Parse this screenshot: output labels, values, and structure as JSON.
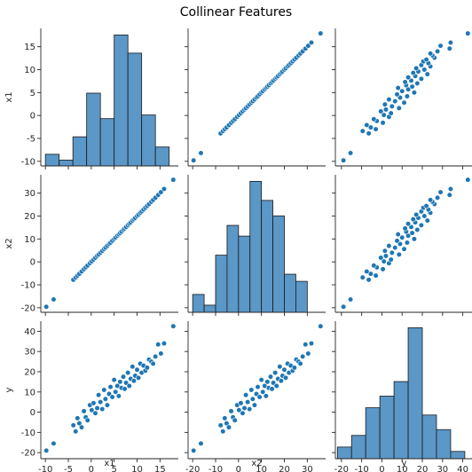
{
  "chart_data": {
    "type": "pairplot",
    "title": "Collinear Features",
    "variables": [
      "x1",
      "x2",
      "y"
    ],
    "colors": {
      "marker": "#1f77b4",
      "hist_fill": "#5b97c7",
      "hist_edge": "#1a1a1a",
      "axis": "#262626"
    },
    "axes": {
      "x1": {
        "range": [
          -11,
          19
        ],
        "ticks": [
          -10,
          -5,
          0,
          5,
          10,
          15
        ]
      },
      "x2": {
        "range": [
          -22,
          38
        ],
        "ticks": [
          -20,
          -10,
          0,
          10,
          20,
          30
        ]
      },
      "y": {
        "range": [
          -23,
          45
        ],
        "ticks": [
          -20,
          -10,
          0,
          10,
          20,
          30,
          40
        ]
      }
    },
    "histograms": {
      "x1": {
        "edges": [
          -10,
          -7,
          -4,
          -1,
          2,
          5,
          8,
          11,
          14,
          17,
          20
        ],
        "counts": [
          1.6,
          0.8,
          4,
          10,
          6.5,
          18,
          15.5,
          7,
          2.6,
          0
        ]
      },
      "x2": {
        "edges": [
          -20,
          -15,
          -10,
          -5,
          0,
          5,
          10,
          15,
          20,
          25,
          30,
          35,
          40
        ],
        "counts": [
          1.5,
          0.6,
          4.8,
          7.3,
          6.4,
          11,
          9.4,
          8.1,
          3.2,
          2.6,
          0,
          0
        ]
      },
      "y": {
        "edges": [
          -22,
          -15,
          -8,
          -1,
          6,
          13,
          20,
          27,
          34,
          41,
          48
        ],
        "counts": [
          1.6,
          3.2,
          7,
          8.6,
          10.6,
          18,
          6,
          4,
          1,
          0
        ]
      }
    },
    "series": [
      {
        "values": {
          "x1": [
            -9.8,
            -8.2,
            -3.9,
            -3.4,
            -3.0,
            -2.6,
            -2.1,
            -1.6,
            -1.2,
            -0.8,
            -0.3,
            0.1,
            0.5,
            0.9,
            1.3,
            1.6,
            2.0,
            2.4,
            2.8,
            3.1,
            3.5,
            3.9,
            4.2,
            4.6,
            5.0,
            5.3,
            5.7,
            6.0,
            6.3,
            6.6,
            7.0,
            7.3,
            7.6,
            8.0,
            8.3,
            8.6,
            9.0,
            9.3,
            9.6,
            10.0,
            10.3,
            10.7,
            11.0,
            11.4,
            11.8,
            12.2,
            12.6,
            13.1,
            13.5,
            14.0,
            14.6,
            15.2,
            15.9,
            17.9
          ],
          "x2": [
            -19.6,
            -16.4,
            -7.8,
            -6.8,
            -6.0,
            -5.2,
            -4.2,
            -3.2,
            -2.4,
            -1.6,
            -0.6,
            0.2,
            1.0,
            1.8,
            2.6,
            3.2,
            4.0,
            4.8,
            5.6,
            6.2,
            7.0,
            7.8,
            8.4,
            9.2,
            10.0,
            10.6,
            11.4,
            12.0,
            12.6,
            13.2,
            14.0,
            14.6,
            15.2,
            16.0,
            16.6,
            17.2,
            18.0,
            18.6,
            19.2,
            20.0,
            20.6,
            21.4,
            22.0,
            22.8,
            23.6,
            24.4,
            25.2,
            26.2,
            27.0,
            28.0,
            29.2,
            30.4,
            31.8,
            35.8
          ],
          "y": [
            -19.0,
            -15.5,
            -6.5,
            -9.5,
            -3.0,
            -5.5,
            -7.5,
            0.5,
            -2.5,
            -4.0,
            3.5,
            1.0,
            4.5,
            -0.5,
            2.0,
            8.5,
            5.0,
            1.5,
            11.0,
            6.5,
            3.5,
            9.0,
            12.5,
            7.5,
            16.0,
            10.0,
            13.0,
            8.0,
            15.0,
            12.0,
            17.5,
            11.5,
            14.5,
            19.5,
            13.0,
            16.5,
            22.5,
            15.5,
            18.0,
            21.0,
            17.0,
            24.0,
            19.5,
            23.0,
            20.5,
            22.0,
            26.0,
            25.0,
            24.0,
            27.5,
            33.5,
            29.0,
            34.0,
            42.5
          ]
        }
      }
    ]
  }
}
